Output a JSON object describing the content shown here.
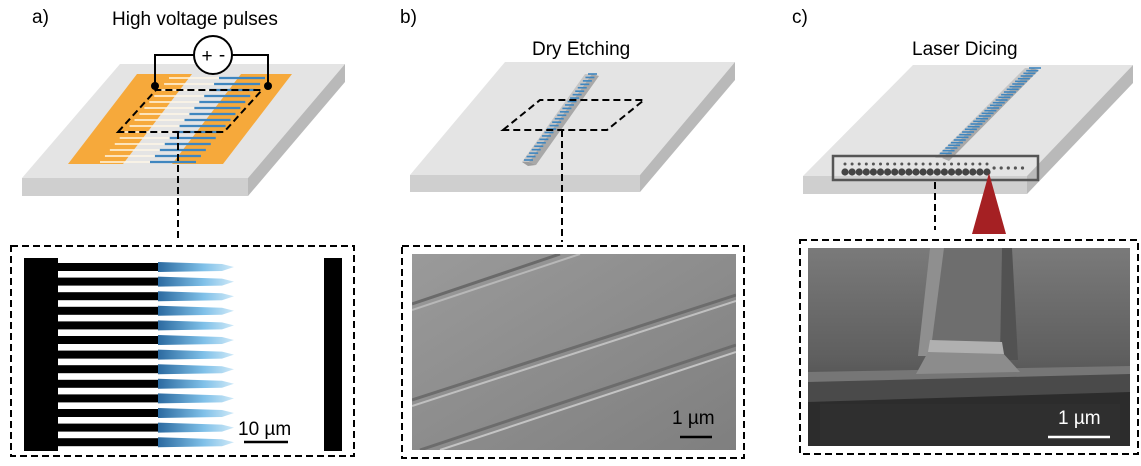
{
  "panels": [
    {
      "label": "a)",
      "title": "High voltage pulses",
      "scale_bar": "10 µm",
      "icons": [
        "voltage-source-icon"
      ]
    },
    {
      "label": "b)",
      "title": "Dry Etching",
      "scale_bar": "1 µm"
    },
    {
      "label": "c)",
      "title": "Laser Dicing",
      "scale_bar": "1 µm"
    }
  ],
  "source_symbols": {
    "plus": "+",
    "minus": "-"
  },
  "colors": {
    "electrode": "#f6a93b",
    "waveguide": "#3f86bf",
    "substrate_top": "#e4e4e4",
    "substrate_side": "#c8c8c8",
    "laser": "#a52023",
    "sem_gray": "#8a8a8a"
  }
}
